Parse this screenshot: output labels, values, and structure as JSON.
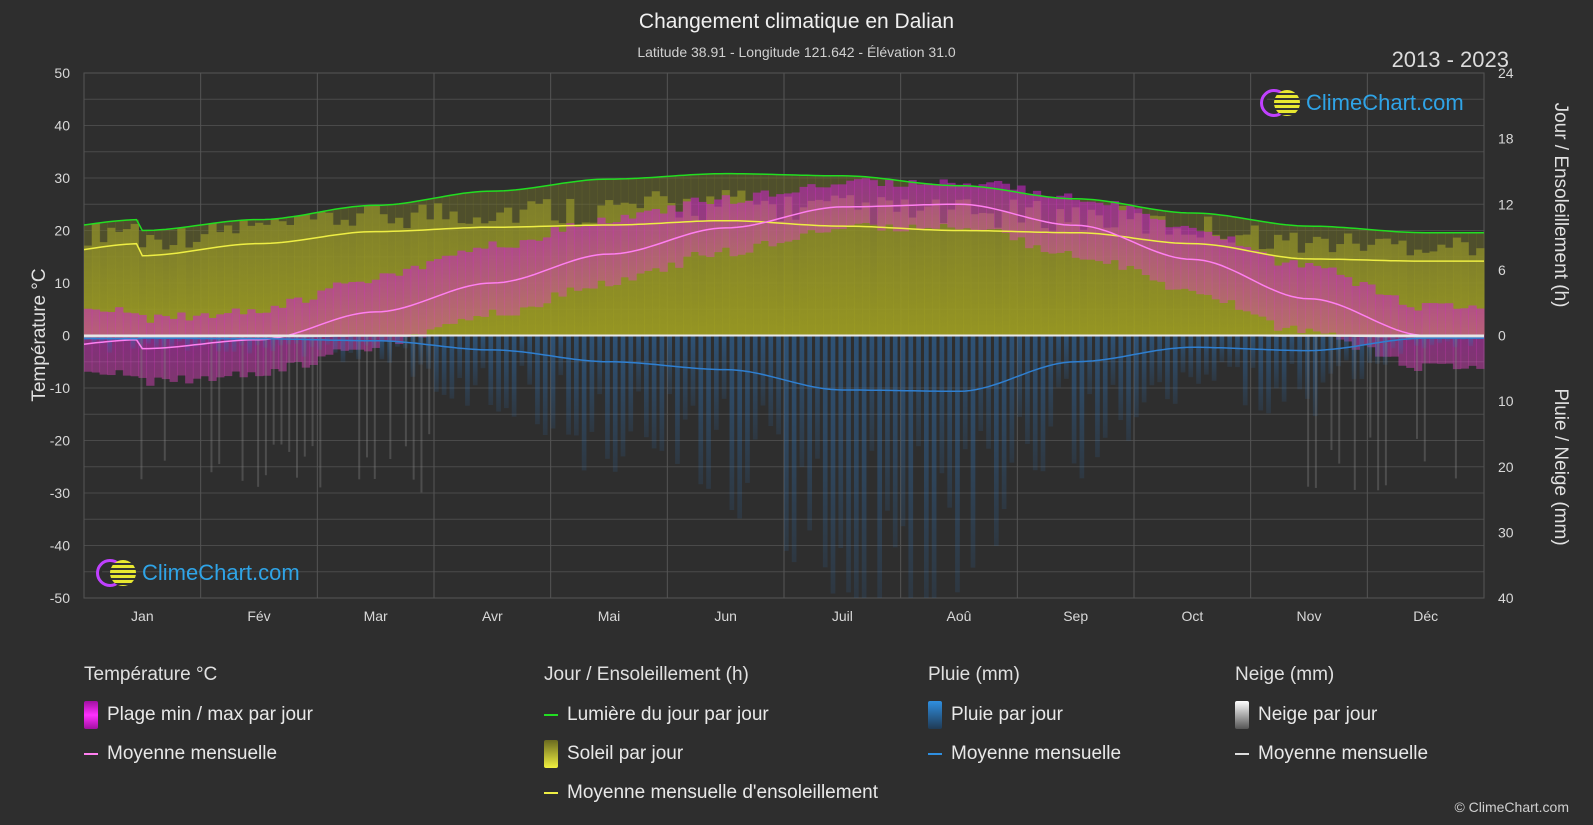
{
  "header": {
    "title": "Changement climatique en Dalian",
    "subtitle": "Latitude 38.91 - Longitude 121.642 - Élévation 31.0",
    "years": "2013 - 2023"
  },
  "axes": {
    "left_title": "Température °C",
    "right_top_title": "Jour / Ensoleillement (h)",
    "right_bottom_title": "Pluie / Neige (mm)"
  },
  "logo": {
    "text": "ClimeChart.com"
  },
  "copyright": "© ClimeChart.com",
  "colors": {
    "background": "#2e2e2e",
    "temp_range": "#d010d0",
    "temp_mean": "#ff7ff0",
    "daylight": "#22dd22",
    "sunshine_fill": "#a8a820",
    "sunshine_mean": "#eeee44",
    "rain": "#2f7fd0",
    "snow": "#dddddd",
    "logo_blue": "#2fa4e7"
  },
  "legend": {
    "temperature": {
      "title": "Température °C",
      "items": [
        "Plage min / max par jour",
        "Moyenne mensuelle"
      ]
    },
    "sun": {
      "title": "Jour / Ensoleillement (h)",
      "items": [
        "Lumière du jour par jour",
        "Soleil par jour",
        "Moyenne mensuelle d'ensoleillement"
      ]
    },
    "rain": {
      "title": "Pluie (mm)",
      "items": [
        "Pluie par jour",
        "Moyenne mensuelle"
      ]
    },
    "snow": {
      "title": "Neige (mm)",
      "items": [
        "Neige par jour",
        "Moyenne mensuelle"
      ]
    }
  },
  "chart_data": {
    "type": "area",
    "categories": [
      "Jan",
      "Fév",
      "Mar",
      "Avr",
      "Mai",
      "Jun",
      "Juil",
      "Aoû",
      "Sep",
      "Oct",
      "Nov",
      "Déc"
    ],
    "left_axis": {
      "label": "Température °C",
      "range": [
        -50,
        50
      ],
      "ticks": [
        50,
        40,
        30,
        20,
        10,
        0,
        -10,
        -20,
        -30,
        -40,
        -50
      ]
    },
    "right_axis_top": {
      "label": "Jour / Ensoleillement (h)",
      "range": [
        0,
        24
      ],
      "ticks": [
        24,
        18,
        12,
        6,
        0
      ]
    },
    "right_axis_bottom": {
      "label": "Pluie / Neige (mm)",
      "range": [
        0,
        40
      ],
      "ticks": [
        0,
        10,
        20,
        30,
        40
      ]
    },
    "grid": true,
    "series": [
      {
        "name": "Moyenne mensuelle",
        "group": "Température °C",
        "unit": "°C",
        "values": [
          -2.5,
          -0.8,
          4.5,
          10.0,
          15.5,
          20.5,
          24.5,
          25.0,
          21.0,
          14.5,
          7.0,
          0.0
        ]
      },
      {
        "name": "Plage min / max par jour",
        "group": "Température °C",
        "unit": "°C",
        "min": [
          -8,
          -6,
          -1,
          5,
          11,
          17,
          21.5,
          22,
          16.5,
          9.5,
          1.5,
          -5
        ],
        "max": [
          2,
          4,
          10,
          16,
          21,
          25,
          28,
          28.5,
          25.5,
          19.5,
          12,
          4.5
        ]
      },
      {
        "name": "Lumière du jour par jour",
        "group": "Jour / Ensoleillement (h)",
        "unit": "h",
        "values": [
          9.6,
          10.6,
          11.9,
          13.2,
          14.3,
          14.8,
          14.6,
          13.7,
          12.5,
          11.2,
          10.0,
          9.4
        ]
      },
      {
        "name": "Moyenne mensuelle d'ensoleillement",
        "group": "Jour / Ensoleillement (h)",
        "unit": "h",
        "values": [
          7.3,
          8.4,
          9.5,
          9.9,
          10.1,
          10.5,
          10.0,
          9.6,
          9.4,
          8.4,
          7.0,
          6.8
        ]
      },
      {
        "name": "Moyenne mensuelle",
        "group": "Pluie (mm)",
        "unit": "mm",
        "values": [
          0.4,
          0.5,
          0.8,
          2.2,
          4.0,
          5.2,
          8.3,
          8.5,
          4.0,
          1.8,
          2.3,
          0.4
        ]
      },
      {
        "name": "Moyenne mensuelle",
        "group": "Neige (mm)",
        "unit": "mm",
        "values": [
          0.2,
          0.2,
          0.1,
          0.0,
          0.0,
          0.0,
          0.0,
          0.0,
          0.0,
          0.0,
          0.1,
          0.2
        ]
      }
    ]
  }
}
